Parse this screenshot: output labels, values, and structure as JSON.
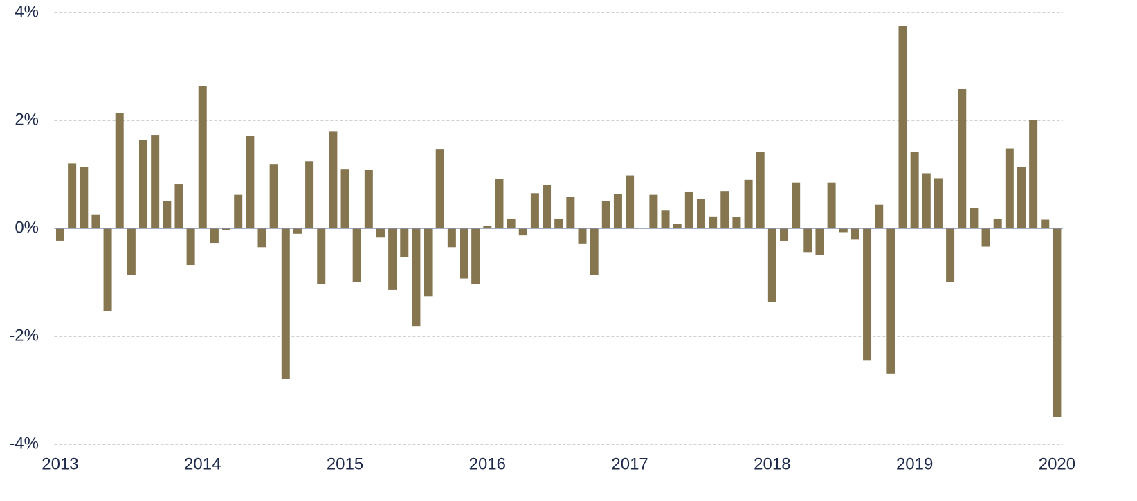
{
  "chart_data": {
    "type": "bar",
    "categories": [
      "2013",
      null,
      null,
      null,
      null,
      null,
      null,
      null,
      null,
      null,
      null,
      null,
      "2014",
      null,
      null,
      null,
      null,
      null,
      null,
      null,
      null,
      null,
      null,
      null,
      "2015",
      null,
      null,
      null,
      null,
      null,
      null,
      null,
      null,
      null,
      null,
      null,
      "2016",
      null,
      null,
      null,
      null,
      null,
      null,
      null,
      null,
      null,
      null,
      null,
      "2017",
      null,
      null,
      null,
      null,
      null,
      null,
      null,
      null,
      null,
      null,
      null,
      "2018",
      null,
      null,
      null,
      null,
      null,
      null,
      null,
      null,
      null,
      null,
      null,
      "2019",
      null,
      null,
      null,
      null,
      null,
      null,
      null,
      null,
      null,
      null,
      null,
      "2020"
    ],
    "values": [
      -0.23,
      1.2,
      1.14,
      0.26,
      -1.53,
      2.13,
      -0.87,
      1.63,
      1.73,
      0.51,
      0.82,
      -0.68,
      2.63,
      -0.27,
      -0.03,
      0.62,
      1.71,
      -0.35,
      1.19,
      -2.79,
      -0.1,
      1.24,
      -1.03,
      1.79,
      1.1,
      -0.99,
      1.08,
      -0.17,
      -1.14,
      -0.53,
      -1.81,
      -1.26,
      1.46,
      -0.35,
      -0.93,
      -1.03,
      0.05,
      0.92,
      0.18,
      -0.13,
      0.65,
      0.8,
      0.18,
      0.58,
      -0.28,
      -0.87,
      0.5,
      0.63,
      0.98,
      0.01,
      0.62,
      0.33,
      0.08,
      0.68,
      0.54,
      0.22,
      0.69,
      0.21,
      0.9,
      1.42,
      -1.36,
      -0.23,
      0.85,
      -0.44,
      -0.5,
      0.85,
      -0.07,
      -0.21,
      -2.44,
      0.44,
      -2.69,
      3.75,
      1.42,
      1.02,
      0.93,
      -0.99,
      2.59,
      0.38,
      -0.34,
      0.18,
      1.48,
      1.14,
      2.01,
      0.16,
      -3.5
    ],
    "color": "#857650",
    "ylim": [
      -4,
      4
    ],
    "yticks": [
      {
        "value": -4,
        "label": "-4%"
      },
      {
        "value": -2,
        "label": "-2%"
      },
      {
        "value": 0,
        "label": "0%"
      },
      {
        "value": 2,
        "label": "2%"
      },
      {
        "value": 4,
        "label": "4%"
      }
    ],
    "grid": true
  }
}
